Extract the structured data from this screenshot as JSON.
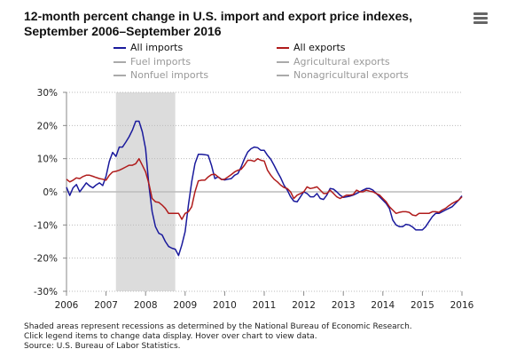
{
  "title": "12-month percent change in U.S. import and export price indexes, September 2006–September 2016",
  "menu_icon": "hamburger-menu-icon",
  "legend": [
    {
      "label": "All imports",
      "color": "#1a1a9c",
      "active": true
    },
    {
      "label": "All exports",
      "color": "#b01c1c",
      "active": true
    },
    {
      "label": "Fuel imports",
      "color": "#999999",
      "active": false
    },
    {
      "label": "Agricultural exports",
      "color": "#999999",
      "active": false
    },
    {
      "label": "Nonfuel imports",
      "color": "#999999",
      "active": false
    },
    {
      "label": "Nonagricultural exports",
      "color": "#999999",
      "active": false
    }
  ],
  "notes": [
    "Shaded areas represent recessions as determined by the National Bureau of Economic Research.",
    "Click legend items to change data display. Hover over chart to view data.",
    "Source: U.S. Bureau of Labor Statistics."
  ],
  "chart_data": {
    "type": "line",
    "title": "12-month percent change in U.S. import and export price indexes, September 2006–September 2016",
    "frequency": "monthly",
    "x_range": [
      "2006-09",
      "2016-09"
    ],
    "x_tick_labels": [
      "2006",
      "2007",
      "2008",
      "2009",
      "2010",
      "2011",
      "2012",
      "2013",
      "2014",
      "2015",
      "2016"
    ],
    "y_tick_labels": [
      "30%",
      "20%",
      "10%",
      "0%",
      "-10%",
      "-20%",
      "-30%"
    ],
    "ylim": [
      -30,
      30
    ],
    "grid": true,
    "legend_position": "top",
    "recessions": [
      {
        "start": "2007-12",
        "end": "2009-06"
      }
    ],
    "series": [
      {
        "name": "All imports",
        "color": "#1a1a9c",
        "values": [
          1.4,
          -1.1,
          1.2,
          2.2,
          0,
          1.3,
          2.7,
          1.8,
          1.2,
          2.1,
          2.7,
          1.9,
          4.7,
          9.2,
          11.9,
          10.7,
          13.5,
          13.5,
          15,
          16.6,
          18.6,
          21.3,
          21.3,
          18.1,
          13,
          2,
          -6,
          -10.5,
          -12.5,
          -13,
          -15,
          -16.5,
          -17,
          -17.3,
          -19.2,
          -16,
          -12,
          -4,
          3,
          8.5,
          11.3,
          11.3,
          11.2,
          11,
          8,
          4,
          4.5,
          3.8,
          3.6,
          3.8,
          4,
          5,
          5.5,
          7.5,
          10,
          12,
          13,
          13.5,
          13.3,
          12.5,
          12.5,
          11,
          9.8,
          8,
          6,
          4.2,
          2,
          0.5,
          -1.5,
          -2.8,
          -3,
          -1.5,
          0,
          -0.5,
          -1.5,
          -1.5,
          -0.5,
          -2,
          -2.3,
          -1,
          1,
          0.8,
          0,
          -1,
          -1.7,
          -1.5,
          -1.3,
          -1,
          -0.5,
          0,
          0.5,
          1,
          1,
          0.5,
          -0.5,
          -1.5,
          -2.5,
          -3.5,
          -5,
          -8.5,
          -10,
          -10.5,
          -10.5,
          -9.8,
          -10,
          -10.6,
          -11.5,
          -11.5,
          -11.5,
          -10.5,
          -9,
          -7.5,
          -6.5,
          -6.5,
          -6,
          -5.5,
          -5,
          -4.5,
          -3.5,
          -2.5,
          -1.2
        ]
      },
      {
        "name": "All exports",
        "color": "#b01c1c",
        "values": [
          3.8,
          3,
          3.5,
          4.2,
          4,
          4.6,
          5,
          5,
          4.7,
          4.3,
          4,
          3.8,
          3.5,
          5,
          6,
          6.2,
          6.5,
          7,
          7.5,
          8,
          8,
          8.5,
          10,
          8,
          6,
          2.5,
          -2,
          -3,
          -3.2,
          -4,
          -5,
          -6.5,
          -6.5,
          -6.5,
          -6.5,
          -8.3,
          -6.5,
          -6,
          -4.5,
          0,
          3.3,
          3.5,
          3.5,
          4.5,
          5.2,
          5.3,
          4.5,
          3.7,
          3.8,
          4.5,
          5.2,
          6,
          6.5,
          6.8,
          8,
          9.5,
          9.5,
          9.2,
          10,
          9.5,
          9.3,
          6.5,
          5,
          3.8,
          3,
          2,
          1.3,
          1,
          0,
          -2,
          -1,
          -0.5,
          0,
          1.5,
          1,
          1.2,
          1.5,
          0.5,
          -0.5,
          -0.5,
          0.5,
          -0.5,
          -1.5,
          -2,
          -1.5,
          -1,
          -1,
          -0.8,
          0.5,
          0,
          0,
          0.5,
          0.2,
          0,
          -0.5,
          -1,
          -2,
          -3,
          -4.5,
          -5.5,
          -6.5,
          -6.2,
          -6,
          -6,
          -6.2,
          -7,
          -7.2,
          -6.5,
          -6.5,
          -6.5,
          -6.5,
          -6,
          -6,
          -6.2,
          -5.5,
          -5,
          -4.2,
          -3.5,
          -3,
          -2.5,
          -1.5
        ]
      }
    ]
  }
}
